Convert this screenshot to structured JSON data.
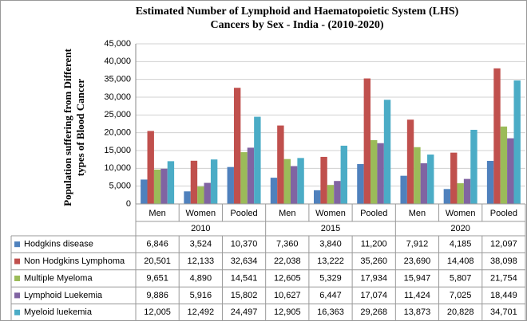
{
  "chart_data": {
    "type": "bar",
    "title": [
      "Estimated Number of Lymphoid  and Haematopoietic System (LHS)",
      "Cancers by Sex - India  - (2010-2020)"
    ],
    "y_label": [
      "Population suffering from Different",
      "types of Blood Cancer"
    ],
    "categories": [
      "Men",
      "Women",
      "Pooled",
      "Men",
      "Women",
      "Pooled",
      "Men",
      "Women",
      "Pooled"
    ],
    "groups": [
      "2010",
      "2015",
      "2020"
    ],
    "ylim": [
      0,
      45000
    ],
    "yticks": [
      0,
      {
        "value": 5000,
        "label": "5,000"
      },
      {
        "value": 10000,
        "label": "10,000"
      },
      {
        "value": 15000,
        "label": "15,000"
      },
      {
        "value": 20000,
        "label": "20,000"
      },
      {
        "value": 25000,
        "label": "25,000"
      },
      {
        "value": 30000,
        "label": "30,000"
      },
      {
        "value": 35000,
        "label": "35,000"
      },
      {
        "value": 40000,
        "label": "40,000"
      },
      {
        "value": 45000,
        "label": "45,000"
      }
    ],
    "grid": true,
    "series": [
      {
        "name": "Hodgkins disease",
        "color": "#4f81bd",
        "values": [
          6846,
          3524,
          10370,
          7360,
          3840,
          11200,
          7912,
          4185,
          12097
        ],
        "value_labels": [
          "6,846",
          "3,524",
          "10,370",
          "7,360",
          "3,840",
          "11,200",
          "7,912",
          "4,185",
          "12,097"
        ]
      },
      {
        "name": "Non Hodgkins Lymphoma",
        "color": "#c0504d",
        "values": [
          20501,
          12133,
          32634,
          22038,
          13222,
          35260,
          23690,
          14408,
          38098
        ],
        "value_labels": [
          "20,501",
          "12,133",
          "32,634",
          "22,038",
          "13,222",
          "35,260",
          "23,690",
          "14,408",
          "38,098"
        ]
      },
      {
        "name": "Multiple Myeloma",
        "color": "#9bbb59",
        "values": [
          9651,
          4890,
          14541,
          12605,
          5329,
          17934,
          15947,
          5807,
          21754
        ],
        "value_labels": [
          "9,651",
          "4,890",
          "14,541",
          "12,605",
          "5,329",
          "17,934",
          "15,947",
          "5,807",
          "21,754"
        ]
      },
      {
        "name": "Lymphoid Luekemia",
        "color": "#8064a2",
        "values": [
          9886,
          5916,
          15802,
          10627,
          6447,
          17074,
          11424,
          7025,
          18449
        ],
        "value_labels": [
          "9,886",
          "5,916",
          "15,802",
          "10,627",
          "6,447",
          "17,074",
          "11,424",
          "7,025",
          "18,449"
        ]
      },
      {
        "name": "Myeloid luekemia",
        "color": "#4bacc6",
        "values": [
          12005,
          12492,
          24497,
          12905,
          16363,
          29268,
          13873,
          20828,
          34701
        ],
        "value_labels": [
          "12,005",
          "12,492",
          "24,497",
          "12,905",
          "16,363",
          "29,268",
          "13,873",
          "20,828",
          "34,701"
        ]
      }
    ]
  }
}
